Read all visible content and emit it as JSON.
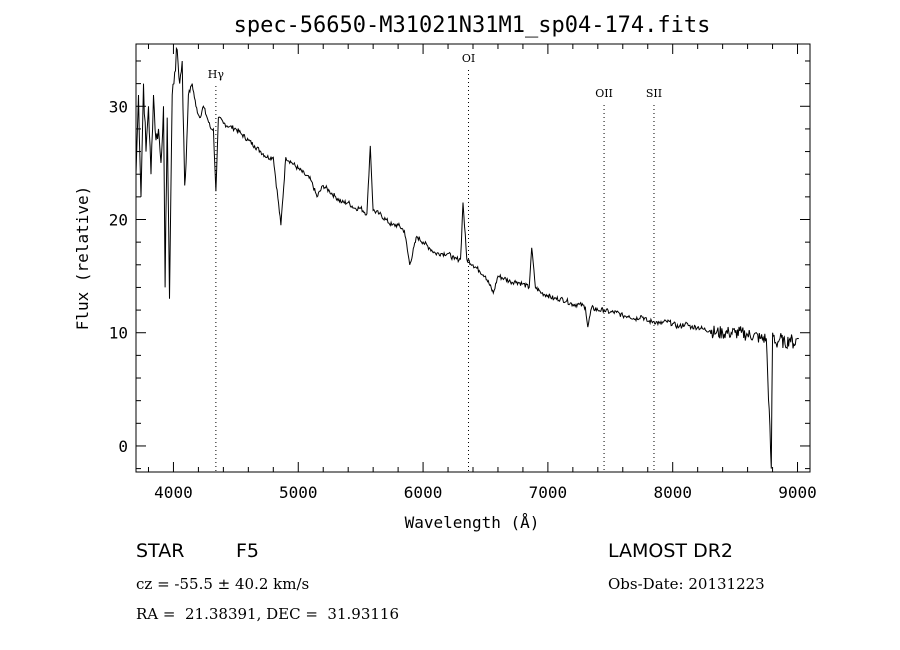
{
  "chart_data": {
    "type": "line",
    "title": "spec-56650-M31021N31M1_sp04-174.fits",
    "xlabel": "Wavelength (Å)",
    "ylabel": "Flux (relative)",
    "xlim": [
      3700,
      9100
    ],
    "ylim": [
      -2.3,
      35.5
    ],
    "x_ticks": [
      4000,
      5000,
      6000,
      7000,
      8000,
      9000
    ],
    "y_ticks": [
      0,
      10,
      20,
      30
    ],
    "grid": false,
    "series": [
      {
        "x": [
          3700,
          3720,
          3740,
          3760,
          3780,
          3800,
          3820,
          3840,
          3860,
          3880,
          3900,
          3920,
          3933,
          3950,
          3968,
          3990,
          4010,
          4030,
          4050,
          4070,
          4090,
          4101,
          4120,
          4150,
          4180,
          4210,
          4240,
          4270,
          4300,
          4320,
          4340,
          4360,
          4400,
          4450,
          4500,
          4550,
          4600,
          4650,
          4700,
          4750,
          4800,
          4861,
          4900,
          4950,
          5000,
          5050,
          5100,
          5150,
          5200,
          5250,
          5300,
          5350,
          5400,
          5450,
          5500,
          5550,
          5577,
          5600,
          5650,
          5700,
          5750,
          5800,
          5850,
          5893,
          5950,
          6000,
          6050,
          6100,
          6150,
          6200,
          6250,
          6300,
          6320,
          6350,
          6400,
          6450,
          6500,
          6563,
          6600,
          6650,
          6700,
          6750,
          6800,
          6850,
          6870,
          6900,
          6950,
          7000,
          7050,
          7100,
          7150,
          7200,
          7250,
          7300,
          7320,
          7350,
          7400,
          7450,
          7500,
          7550,
          7600,
          7650,
          7700,
          7750,
          7800,
          7850,
          7900,
          7950,
          8000,
          8050,
          8100,
          8150,
          8200,
          8250,
          8300,
          8350,
          8400,
          8450,
          8500,
          8550,
          8600,
          8650,
          8700,
          8750,
          8790,
          8800,
          8830,
          8860,
          8900,
          8940,
          8970,
          9000,
          9010
        ],
        "y": [
          24,
          31,
          22,
          32,
          26,
          30,
          24,
          31,
          27,
          28,
          25,
          30,
          14,
          29,
          13,
          31,
          33,
          35,
          32,
          34,
          23,
          25,
          31,
          32,
          30,
          29,
          30,
          29,
          28,
          28,
          22.5,
          29,
          28.5,
          28.2,
          28,
          27.5,
          27,
          26.5,
          26,
          25.5,
          25.5,
          19.5,
          25.5,
          25,
          24.5,
          24,
          23.5,
          22,
          23,
          22.5,
          22,
          21.5,
          21.5,
          21,
          21,
          20.5,
          26.5,
          20.8,
          20.5,
          20,
          19.5,
          19.5,
          19,
          16,
          18.5,
          18,
          17.5,
          17,
          17,
          17,
          16.5,
          16.5,
          21.5,
          16.5,
          16,
          15.5,
          15,
          13.5,
          15,
          14.8,
          14.5,
          14.5,
          14.3,
          14,
          17.5,
          14,
          13.5,
          13.3,
          13,
          13,
          12.8,
          12.5,
          12.5,
          12.3,
          10.5,
          12.2,
          12,
          12,
          11.8,
          11.8,
          11.5,
          11.5,
          11.2,
          11.5,
          11,
          11,
          10.8,
          11,
          10.8,
          10.5,
          10.8,
          10.5,
          10.5,
          10.3,
          10.2,
          10,
          10,
          10,
          10,
          10,
          9.8,
          9.8,
          9.5,
          9.5,
          -2,
          10,
          9,
          9.5,
          9,
          9.5,
          9,
          9.5,
          9.5
        ]
      }
    ],
    "lines": [
      {
        "x": 4340,
        "label": "Hγ"
      },
      {
        "x": 6364,
        "label": "OI"
      },
      {
        "x": 7450,
        "label": "OII"
      },
      {
        "x": 7850,
        "label": "SII"
      }
    ]
  },
  "info": {
    "object_class": "STAR",
    "subclass": "F5",
    "survey": "LAMOST DR2",
    "redshift": "cz = -55.5 ± 40.2 km/s",
    "obs_date": "Obs-Date: 20131223",
    "coords": "RA =  21.38391, DEC =  31.93116"
  }
}
